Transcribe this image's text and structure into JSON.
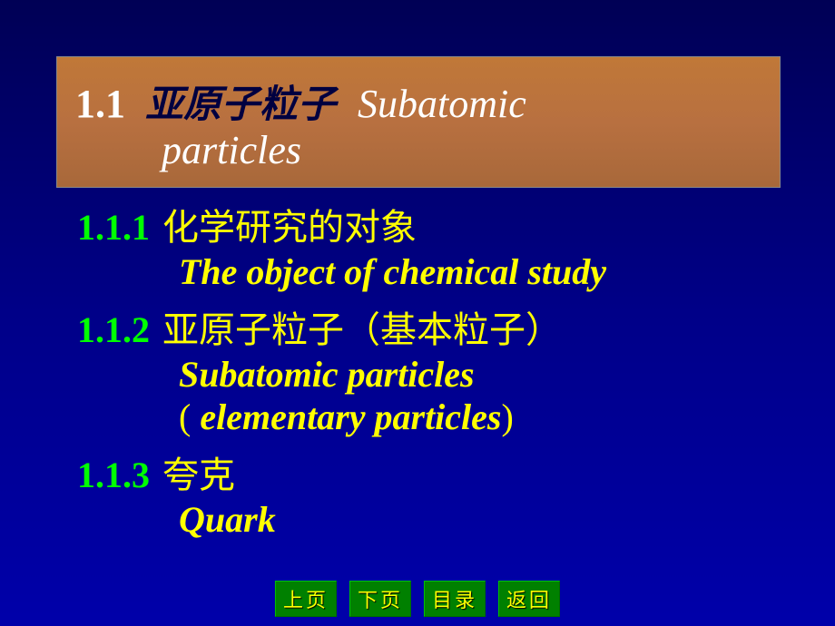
{
  "title": {
    "number": "1.1",
    "chinese": "亚原子粒子",
    "english1": "Subatomic",
    "english2": "particles",
    "bg_color": "#b87040",
    "text_color_num": "#ffffff",
    "text_color_cn": "#000040",
    "text_color_en": "#ffffff"
  },
  "sections": [
    {
      "number": "1.1.1",
      "chinese": "化学研究的对象",
      "english": "The object of chemical study"
    },
    {
      "number": "1.1.2",
      "chinese": "亚原子粒子（基本粒子）",
      "english": "Subatomic particles",
      "english_paren": "elementary particles"
    },
    {
      "number": "1.1.3",
      "chinese": "夸克",
      "english": "Quark"
    }
  ],
  "colors": {
    "section_number": "#00ff00",
    "section_text": "#ffff00",
    "background_top": "#000055",
    "background_bottom": "#0000aa"
  },
  "nav": {
    "prev": "上页",
    "next": "下页",
    "toc": "目录",
    "back": "返回",
    "bg": "#008000",
    "fg": "#ffff00"
  },
  "typography": {
    "title_fontsize": 44,
    "section_fontsize": 40,
    "nav_fontsize": 22
  }
}
